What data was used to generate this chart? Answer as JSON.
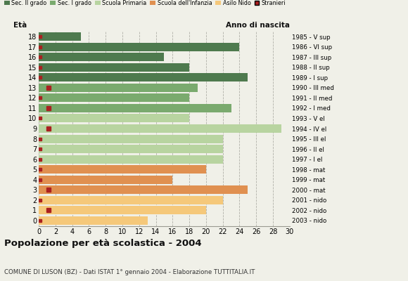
{
  "ages": [
    18,
    17,
    16,
    15,
    14,
    13,
    12,
    11,
    10,
    9,
    8,
    7,
    6,
    5,
    4,
    3,
    2,
    1,
    0
  ],
  "values": [
    5,
    24,
    15,
    18,
    25,
    19,
    18,
    23,
    18,
    29,
    22,
    22,
    22,
    20,
    16,
    25,
    22,
    20,
    13
  ],
  "colors": [
    "#4e7a4e",
    "#4e7a4e",
    "#4e7a4e",
    "#4e7a4e",
    "#4e7a4e",
    "#7aaa6e",
    "#7aaa6e",
    "#7aaa6e",
    "#b8d4a0",
    "#b8d4a0",
    "#b8d4a0",
    "#b8d4a0",
    "#b8d4a0",
    "#e09050",
    "#e09050",
    "#e09050",
    "#f5c87a",
    "#f5c87a",
    "#f5c87a"
  ],
  "stranieri_large": [
    13,
    11,
    9,
    3,
    1
  ],
  "stranieri_small": [
    18,
    17,
    16,
    15,
    14,
    12,
    10,
    8,
    7,
    6,
    5,
    4,
    2,
    0
  ],
  "anno_labels": [
    "1985 - V sup",
    "1986 - VI sup",
    "1987 - III sup",
    "1988 - II sup",
    "1989 - I sup",
    "1990 - III med",
    "1991 - II med",
    "1992 - I med",
    "1993 - V el",
    "1994 - IV el",
    "1995 - III el",
    "1996 - II el",
    "1997 - I el",
    "1998 - mat",
    "1999 - mat",
    "2000 - mat",
    "2001 - nido",
    "2002 - nido",
    "2003 - nido"
  ],
  "legend_labels": [
    "Sec. II grado",
    "Sec. I grado",
    "Scuola Primaria",
    "Scuola dell'Infanzia",
    "Asilo Nido",
    "Stranieri"
  ],
  "legend_colors": [
    "#4e7a4e",
    "#7aaa6e",
    "#b8d4a0",
    "#e09050",
    "#f5c87a",
    "#aa2020"
  ],
  "title": "Popolazione per età scolastica - 2004",
  "subtitle": "COMUNE DI LUSON (BZ) - Dati ISTAT 1° gennaio 2004 - Elaborazione TUTTITALIA.IT",
  "xlabel_eta": "Età",
  "xlabel_anno": "Anno di nascita",
  "xlim": [
    0,
    30
  ],
  "xticks": [
    0,
    2,
    4,
    6,
    8,
    10,
    12,
    14,
    16,
    18,
    20,
    22,
    24,
    26,
    28,
    30
  ],
  "bg_color": "#f0f0e8",
  "bar_height": 0.82
}
